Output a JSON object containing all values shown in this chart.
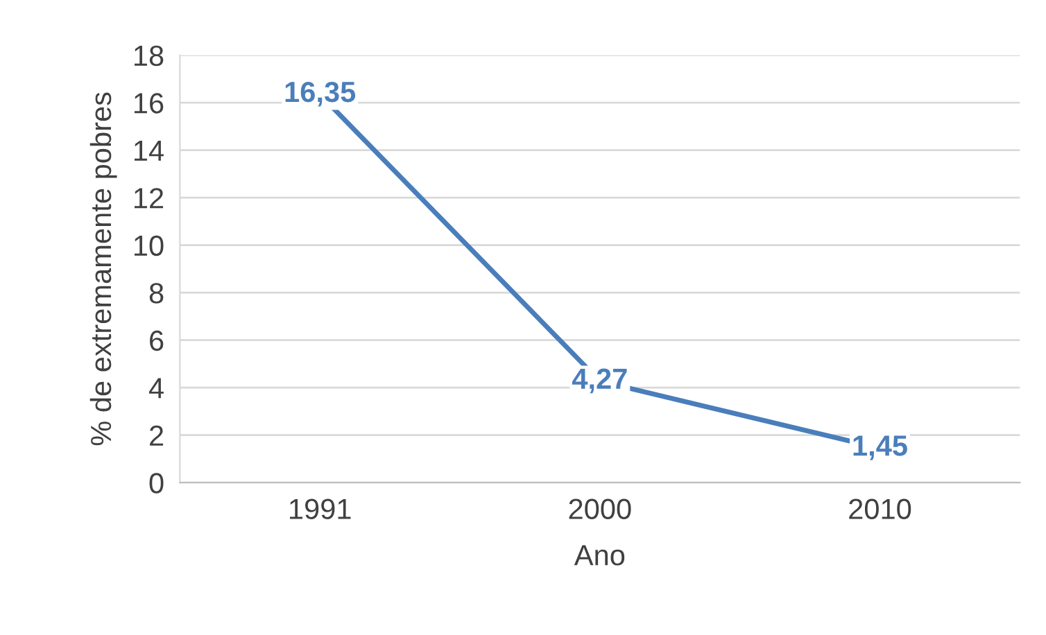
{
  "chart_data": {
    "type": "line",
    "xlabel": "Ano",
    "ylabel": "% de extremamente pobres",
    "categories": [
      "1991",
      "2000",
      "2010"
    ],
    "series": [
      {
        "color": "#4a7ebb",
        "values": [
          16.35,
          4.27,
          1.45
        ],
        "value_labels": [
          "16,35",
          "4,27",
          "1,45"
        ]
      }
    ],
    "ylim": [
      0,
      18
    ],
    "yticks": [
      0,
      2,
      4,
      6,
      8,
      10,
      12,
      14,
      16,
      18
    ],
    "grid": "y",
    "line_style": "solid",
    "legend": false
  }
}
